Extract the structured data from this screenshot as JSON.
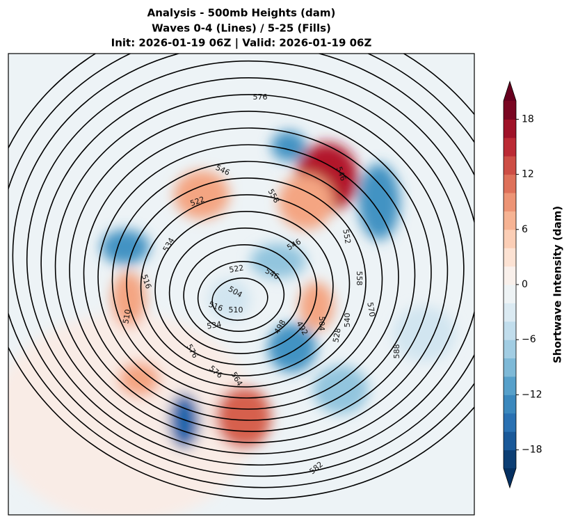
{
  "title": [
    "Analysis - 500mb Heights (dam)",
    "Waves 0-4 (Lines) / 5-25 (Fills)",
    "Init: 2026-01-19 06Z | Valid: 2026-01-19 06Z"
  ],
  "colorbar": {
    "label": "Shortwave Intensity (dam)",
    "lim": [
      -20,
      20
    ],
    "step": 2,
    "ticks": [
      {
        "value": -18,
        "label": "−18"
      },
      {
        "value": -12,
        "label": "−12"
      },
      {
        "value": -6,
        "label": "−6"
      },
      0,
      6,
      12,
      18
    ],
    "colors": [
      "#053061",
      "#2166ac",
      "#4393c3",
      "#92c5de",
      "#d1e5f0",
      "#f7f7f7",
      "#fddbc7",
      "#f4a582",
      "#d6604d",
      "#b2182b",
      "#67001f"
    ]
  },
  "contour_labels": [
    "576",
    "546",
    "522",
    "558",
    "546",
    "534",
    "546",
    "522",
    "546",
    "516",
    "504",
    "510",
    "516",
    "510",
    "534",
    "498",
    "492",
    "504",
    "540",
    "528",
    "552",
    "558",
    "570",
    "588",
    "576",
    "564",
    "576",
    "582"
  ]
}
